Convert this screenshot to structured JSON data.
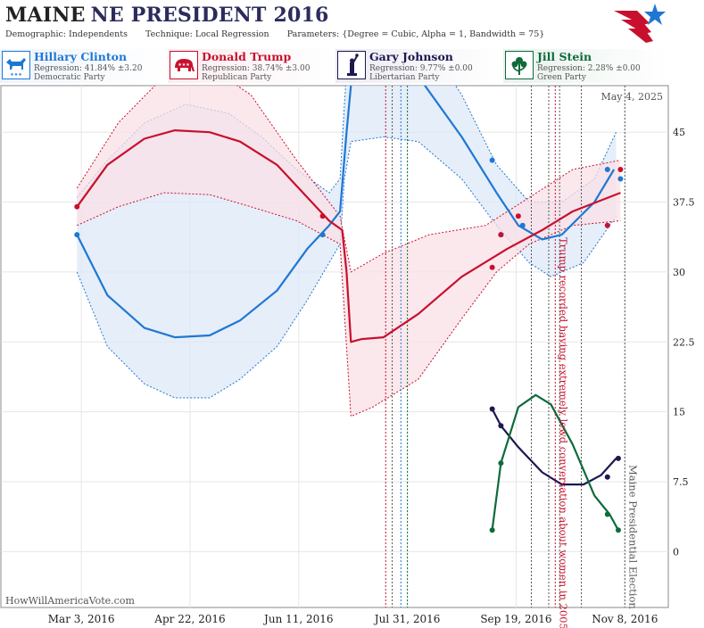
{
  "header": {
    "title_state": "MAINE",
    "title_rest": "NE PRESIDENT 2016",
    "demographic_label": "Demographic:",
    "demographic_value": "Independents",
    "technique_label": "Technique:",
    "technique_value": "Local Regression",
    "parameters_label": "Parameters:",
    "parameters_value": "{Degree = Cubic, Alpha = 1, Bandwidth = 75}"
  },
  "legend": [
    {
      "name": "Hillary Clinton",
      "regression": "Regression: 41.84% ±3.20",
      "party": "Democratic Party",
      "color": "#1f77d4",
      "icon": "donkey-icon"
    },
    {
      "name": "Donald Trump",
      "regression": "Regression: 38.74% ±3.00",
      "party": "Republican Party",
      "color": "#c8102e",
      "icon": "elephant-icon"
    },
    {
      "name": "Gary Johnson",
      "regression": "Regression: 9.77% ±0.00",
      "party": "Libertarian Party",
      "color": "#1c1850",
      "icon": "statue-of-liberty-icon"
    },
    {
      "name": "Jill Stein",
      "regression": "Regression: 2.28% ±0.00",
      "party": "Green Party",
      "color": "#0e6b3a",
      "icon": "flower-icon"
    }
  ],
  "watermark": "HowWillAmericaVote.com",
  "chart_data": {
    "type": "line",
    "date_label": "May 4, 2025",
    "x_ticks": [
      "Mar 3, 2016",
      "Apr 22, 2016",
      "Jun 11, 2016",
      "Jul 31, 2016",
      "Sep 19, 2016",
      "Nov 8, 2016"
    ],
    "y_ticks": [
      "0",
      "7.5",
      "15",
      "22.5",
      "30",
      "37.5",
      "45"
    ],
    "xlim": [
      "2016-01-26",
      "2016-11-28"
    ],
    "ylim": [
      -6,
      50
    ],
    "y_gridlines": [
      0,
      7.5,
      15,
      22.5,
      30,
      37.5,
      45
    ],
    "annotations": [
      {
        "text": "Trump recorded having extremely lewd conversation about women in 2005",
        "date": "2016-10-07",
        "color": "#c8102e"
      },
      {
        "text": "Maine Presidential Election",
        "date": "2016-11-08",
        "color": "#555555"
      }
    ],
    "event_lines": [
      {
        "date": "2016-07-21",
        "color": "#c8102e"
      },
      {
        "date": "2016-07-24",
        "color": "#555555"
      },
      {
        "date": "2016-07-28",
        "color": "#1f77d4"
      },
      {
        "date": "2016-07-31",
        "color": "#0e6b3a"
      },
      {
        "date": "2016-09-26",
        "color": "#555555"
      },
      {
        "date": "2016-10-04",
        "color": "#555555"
      },
      {
        "date": "2016-10-07",
        "color": "#c8102e"
      },
      {
        "date": "2016-10-09",
        "color": "#555555"
      },
      {
        "date": "2016-10-19",
        "color": "#555555"
      },
      {
        "date": "2016-11-08",
        "color": "#555555"
      }
    ],
    "series": [
      {
        "name": "Hillary Clinton",
        "color": "#1f77d4",
        "fill": "#dce8f7",
        "line": [
          [
            "2016-03-01",
            34.0
          ],
          [
            "2016-03-15",
            27.5
          ],
          [
            "2016-04-01",
            24.0
          ],
          [
            "2016-04-15",
            23.0
          ],
          [
            "2016-05-01",
            23.2
          ],
          [
            "2016-05-15",
            24.8
          ],
          [
            "2016-06-01",
            28.0
          ],
          [
            "2016-06-15",
            32.5
          ],
          [
            "2016-06-25",
            35.0
          ],
          [
            "2016-06-30",
            36.5
          ],
          [
            "2016-07-03",
            45.0
          ],
          [
            "2016-07-05",
            50.0
          ],
          [
            "2016-07-06",
            56.0
          ],
          [
            "2016-07-20",
            54.0
          ],
          [
            "2016-08-05",
            51.0
          ],
          [
            "2016-08-25",
            44.5
          ],
          [
            "2016-09-10",
            38.5
          ],
          [
            "2016-09-20",
            35.0
          ],
          [
            "2016-10-01",
            33.5
          ],
          [
            "2016-10-10",
            34.0
          ],
          [
            "2016-10-25",
            37.5
          ],
          [
            "2016-11-03",
            41.0
          ]
        ],
        "upper": [
          [
            "2016-03-01",
            38.0
          ],
          [
            "2016-03-15",
            42.0
          ],
          [
            "2016-04-01",
            46.0
          ],
          [
            "2016-04-20",
            48.0
          ],
          [
            "2016-05-10",
            47.0
          ],
          [
            "2016-05-25",
            44.5
          ],
          [
            "2016-06-10",
            41.0
          ],
          [
            "2016-06-25",
            38.5
          ],
          [
            "2016-06-30",
            40.0
          ],
          [
            "2016-07-02",
            48.0
          ],
          [
            "2016-07-04",
            55.0
          ],
          [
            "2016-07-20",
            58.0
          ],
          [
            "2016-08-05",
            56.0
          ],
          [
            "2016-08-25",
            49.0
          ],
          [
            "2016-09-10",
            41.5
          ],
          [
            "2016-09-25",
            37.5
          ],
          [
            "2016-10-10",
            37.5
          ],
          [
            "2016-10-25",
            40.0
          ],
          [
            "2016-11-04",
            45.0
          ]
        ],
        "lower": [
          [
            "2016-03-01",
            30.0
          ],
          [
            "2016-03-15",
            22.0
          ],
          [
            "2016-04-01",
            18.0
          ],
          [
            "2016-04-15",
            16.5
          ],
          [
            "2016-05-01",
            16.5
          ],
          [
            "2016-05-15",
            18.5
          ],
          [
            "2016-06-01",
            22.0
          ],
          [
            "2016-06-15",
            27.0
          ],
          [
            "2016-06-30",
            33.0
          ],
          [
            "2016-07-02",
            40.0
          ],
          [
            "2016-07-05",
            44.0
          ],
          [
            "2016-07-20",
            44.5
          ],
          [
            "2016-08-05",
            44.0
          ],
          [
            "2016-08-25",
            40.0
          ],
          [
            "2016-09-10",
            35.0
          ],
          [
            "2016-09-25",
            31.0
          ],
          [
            "2016-10-05",
            29.5
          ],
          [
            "2016-10-20",
            31.0
          ],
          [
            "2016-11-04",
            36.0
          ]
        ],
        "points": [
          [
            "2016-03-01",
            34.0
          ],
          [
            "2016-06-22",
            34.0
          ],
          [
            "2016-09-08",
            42.0
          ],
          [
            "2016-09-12",
            34.0
          ],
          [
            "2016-09-22",
            35.0
          ],
          [
            "2016-10-31",
            41.0
          ],
          [
            "2016-11-06",
            40.0
          ]
        ]
      },
      {
        "name": "Donald Trump",
        "color": "#c8102e",
        "fill": "#f9e0e5",
        "line": [
          [
            "2016-03-01",
            37.0
          ],
          [
            "2016-03-15",
            41.5
          ],
          [
            "2016-04-01",
            44.3
          ],
          [
            "2016-04-15",
            45.2
          ],
          [
            "2016-05-01",
            45.0
          ],
          [
            "2016-05-15",
            44.0
          ],
          [
            "2016-06-01",
            41.5
          ],
          [
            "2016-06-15",
            38.0
          ],
          [
            "2016-06-25",
            35.5
          ],
          [
            "2016-07-01",
            34.5
          ],
          [
            "2016-07-03",
            30.0
          ],
          [
            "2016-07-05",
            22.5
          ],
          [
            "2016-07-10",
            22.8
          ],
          [
            "2016-07-20",
            23.0
          ],
          [
            "2016-08-05",
            25.5
          ],
          [
            "2016-08-25",
            29.5
          ],
          [
            "2016-09-15",
            32.5
          ],
          [
            "2016-10-01",
            34.5
          ],
          [
            "2016-10-15",
            36.5
          ],
          [
            "2016-11-06",
            38.5
          ]
        ],
        "upper": [
          [
            "2016-03-01",
            39.0
          ],
          [
            "2016-03-20",
            46.0
          ],
          [
            "2016-04-10",
            51.0
          ],
          [
            "2016-05-01",
            52.0
          ],
          [
            "2016-05-20",
            49.0
          ],
          [
            "2016-06-10",
            42.0
          ],
          [
            "2016-06-30",
            36.0
          ],
          [
            "2016-07-05",
            30.0
          ],
          [
            "2016-07-20",
            32.0
          ],
          [
            "2016-08-10",
            34.0
          ],
          [
            "2016-09-05",
            35.0
          ],
          [
            "2016-09-25",
            38.0
          ],
          [
            "2016-10-15",
            41.0
          ],
          [
            "2016-11-06",
            42.0
          ]
        ],
        "lower": [
          [
            "2016-03-01",
            35.0
          ],
          [
            "2016-03-20",
            37.0
          ],
          [
            "2016-04-10",
            38.5
          ],
          [
            "2016-05-01",
            38.3
          ],
          [
            "2016-05-20",
            37.0
          ],
          [
            "2016-06-10",
            35.5
          ],
          [
            "2016-06-30",
            33.0
          ],
          [
            "2016-07-05",
            14.5
          ],
          [
            "2016-07-15",
            15.5
          ],
          [
            "2016-08-05",
            18.5
          ],
          [
            "2016-08-25",
            25.0
          ],
          [
            "2016-09-10",
            30.0
          ],
          [
            "2016-09-25",
            33.0
          ],
          [
            "2016-10-15",
            35.0
          ],
          [
            "2016-11-06",
            35.5
          ]
        ],
        "points": [
          [
            "2016-03-01",
            37.0
          ],
          [
            "2016-06-22",
            36.0
          ],
          [
            "2016-09-08",
            30.5
          ],
          [
            "2016-09-12",
            34.0
          ],
          [
            "2016-09-20",
            36.0
          ],
          [
            "2016-10-31",
            35.0
          ],
          [
            "2016-11-06",
            41.0
          ]
        ]
      },
      {
        "name": "Gary Johnson",
        "color": "#1c1850",
        "line": [
          [
            "2016-09-08",
            15.3
          ],
          [
            "2016-09-12",
            13.5
          ],
          [
            "2016-09-20",
            11.2
          ],
          [
            "2016-10-01",
            8.5
          ],
          [
            "2016-10-10",
            7.2
          ],
          [
            "2016-10-20",
            7.2
          ],
          [
            "2016-10-28",
            8.2
          ],
          [
            "2016-11-04",
            10.0
          ]
        ],
        "points": [
          [
            "2016-09-08",
            15.3
          ],
          [
            "2016-09-12",
            13.5
          ],
          [
            "2016-10-31",
            8.0
          ],
          [
            "2016-11-05",
            10.0
          ]
        ]
      },
      {
        "name": "Jill Stein",
        "color": "#0e6b3a",
        "line": [
          [
            "2016-09-08",
            2.3
          ],
          [
            "2016-09-12",
            9.5
          ],
          [
            "2016-09-20",
            15.5
          ],
          [
            "2016-09-28",
            16.8
          ],
          [
            "2016-10-05",
            15.8
          ],
          [
            "2016-10-15",
            11.5
          ],
          [
            "2016-10-25",
            6.0
          ],
          [
            "2016-11-01",
            4.0
          ],
          [
            "2016-11-05",
            2.3
          ]
        ],
        "points": [
          [
            "2016-09-08",
            2.3
          ],
          [
            "2016-09-12",
            9.5
          ],
          [
            "2016-10-31",
            4.0
          ],
          [
            "2016-11-05",
            2.3
          ]
        ]
      }
    ]
  }
}
